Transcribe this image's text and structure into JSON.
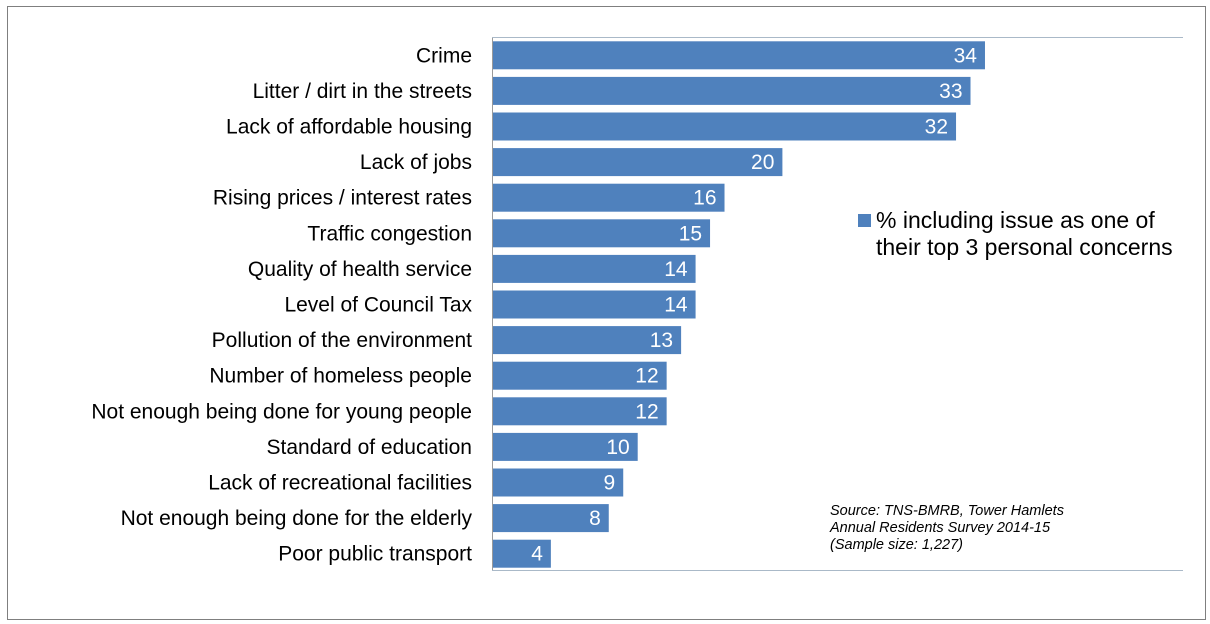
{
  "chart_data": {
    "type": "bar",
    "orientation": "horizontal",
    "categories": [
      "Crime",
      "Litter / dirt in the streets",
      "Lack of affordable housing",
      "Lack of jobs",
      "Rising prices / interest rates",
      "Traffic congestion",
      "Quality of health service",
      "Level of Council Tax",
      "Pollution of the environment",
      "Number of homeless people",
      "Not enough being done for young people",
      "Standard of education",
      "Lack of recreational facilities",
      "Not enough being done for the elderly",
      "Poor public transport"
    ],
    "series": [
      {
        "name": "% including issue as one of their top 3 personal concerns",
        "values": [
          34,
          33,
          32,
          20,
          16,
          15,
          14,
          14,
          13,
          12,
          12,
          10,
          9,
          8,
          4
        ],
        "color": "#4f81bd"
      }
    ],
    "data_labels": true,
    "xlim": [
      0,
      50
    ],
    "grid": false,
    "legend_position": "right"
  },
  "legend": {
    "label": "% including issue as one of their top 3 personal concerns"
  },
  "source_note": {
    "line1": "Source: TNS-BMRB, Tower Hamlets",
    "line2": "Annual Residents Survey 2014-15",
    "line3": "(Sample size: 1,227)"
  }
}
